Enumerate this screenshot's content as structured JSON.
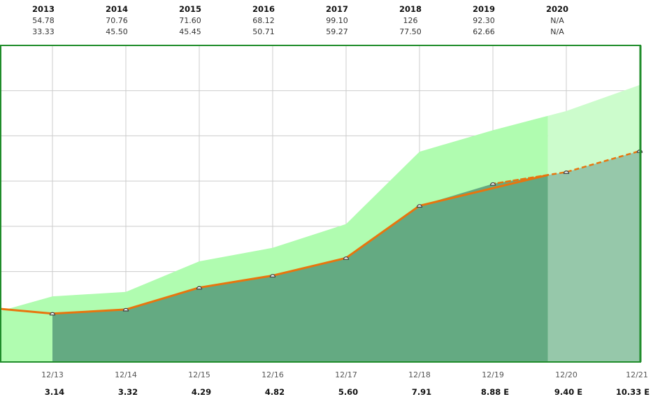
{
  "chart_data": {
    "type": "line",
    "title": "",
    "xlabel": "",
    "ylabel": "",
    "ylim": [
      1,
      15
    ],
    "grid": true,
    "price_table": {
      "years": [
        "2013",
        "2014",
        "2015",
        "2016",
        "2017",
        "2018",
        "2019",
        "2020"
      ],
      "high": [
        "54.78",
        "70.76",
        "71.60",
        "68.12",
        "99.10",
        "126",
        "92.30",
        "N/A"
      ],
      "low": [
        "33.33",
        "45.50",
        "45.45",
        "50.71",
        "59.27",
        "77.50",
        "62.66",
        "N/A"
      ]
    },
    "x": [
      "12/13",
      "12/14",
      "12/15",
      "12/16",
      "12/17",
      "12/18",
      "12/19",
      "12/20",
      "12/21"
    ],
    "eps_labels": [
      "3.14",
      "3.32",
      "4.29",
      "4.82",
      "5.60",
      "7.91",
      "8.88 E",
      "9.40 E",
      "10.33 E"
    ],
    "series": [
      {
        "values": [
          3.14,
          3.32,
          4.29,
          4.82,
          5.6,
          7.91,
          8.88,
          9.4,
          10.33
        ],
        "estimated_from_index": 6
      }
    ],
    "upper_band": [
      3.9,
      4.1,
      5.45,
      6.05,
      7.1,
      10.3,
      11.25,
      12.1,
      13.25
    ],
    "upper_band_start": 3.25,
    "line_start": 3.35,
    "estimate_region_start": 6.75,
    "colors": {
      "line": "#e8750e",
      "band_fill": "#b0fcb0",
      "band_fill_estimate": "#ccfccc",
      "actual_fill": "#64aa82",
      "estimate_fill": "#96c8aa",
      "frame": "#1f8c2a",
      "grid": "#cccccc",
      "marker": "#444444"
    }
  }
}
